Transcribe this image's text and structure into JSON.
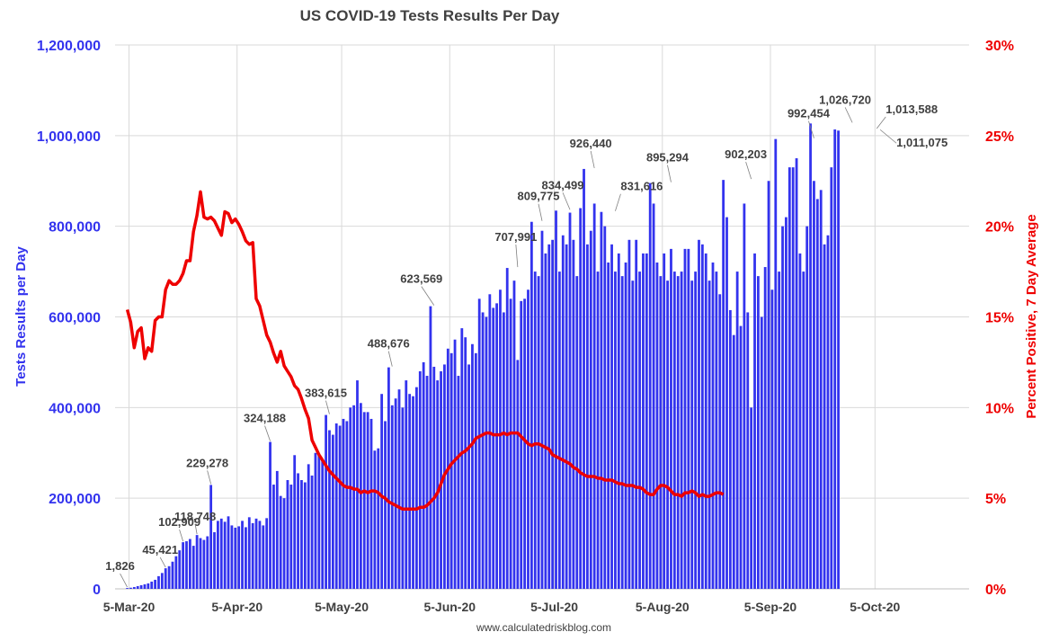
{
  "chart_data": {
    "type": "bar",
    "title": "US COVID-19 Tests Results Per Day",
    "ylabel": "Tests Results per Day",
    "y2label": "Percent Positive, 7 Day Average",
    "source": "www.calculatedriskblog.com",
    "ylim": [
      0,
      1200000
    ],
    "y2lim": [
      0,
      30
    ],
    "y_ticks": [
      "0",
      "200,000",
      "400,000",
      "600,000",
      "800,000",
      "1,000,000",
      "1,200,000"
    ],
    "y2_ticks": [
      "0%",
      "5%",
      "10%",
      "15%",
      "20%",
      "25%",
      "30%"
    ],
    "x_ticks": [
      "5-Mar-20",
      "5-Apr-20",
      "5-May-20",
      "5-Jun-20",
      "5-Jul-20",
      "5-Aug-20",
      "5-Sep-20",
      "5-Oct-20"
    ],
    "x_start": "2020-03-01",
    "x_end": "2020-11-01",
    "grid": true,
    "series": [
      {
        "name": "Tests Results per Day",
        "type": "bar",
        "color": "#3333ee",
        "start_date": "2020-03-04",
        "values": [
          1826,
          2500,
          4000,
          6000,
          8000,
          10000,
          12000,
          16000,
          20000,
          28000,
          35000,
          45421,
          50000,
          60000,
          72000,
          85000,
          102909,
          105000,
          110000,
          95000,
          118748,
          112000,
          108000,
          116000,
          229278,
          125000,
          150000,
          155000,
          148000,
          160000,
          140000,
          135000,
          138000,
          150000,
          136000,
          158000,
          145000,
          155000,
          150000,
          140000,
          156000,
          324188,
          230000,
          260000,
          205000,
          200000,
          240000,
          230000,
          295000,
          255000,
          240000,
          235000,
          275000,
          250000,
          300000,
          295000,
          285000,
          383615,
          350000,
          340000,
          365000,
          360000,
          375000,
          370000,
          400000,
          405000,
          460000,
          410000,
          390000,
          390000,
          375000,
          305000,
          310000,
          430000,
          370000,
          488676,
          405000,
          420000,
          440000,
          400000,
          460000,
          430000,
          425000,
          445000,
          480000,
          500000,
          470000,
          623569,
          490000,
          460000,
          480000,
          495000,
          530000,
          520000,
          550000,
          470000,
          575000,
          555000,
          495000,
          540000,
          520000,
          640000,
          610000,
          600000,
          650000,
          620000,
          630000,
          660000,
          610000,
          707991,
          640000,
          680000,
          505000,
          635000,
          640000,
          660000,
          809775,
          700000,
          690000,
          790000,
          740000,
          760000,
          770000,
          834499,
          700000,
          780000,
          760000,
          830000,
          770000,
          690000,
          840000,
          926440,
          760000,
          790000,
          850000,
          700000,
          831616,
          800000,
          720000,
          760000,
          700000,
          740000,
          690000,
          720000,
          770000,
          680000,
          770000,
          700000,
          740000,
          740000,
          895294,
          850000,
          720000,
          690000,
          740000,
          680000,
          750000,
          700000,
          690000,
          700000,
          750000,
          750000,
          680000,
          700000,
          770000,
          760000,
          740000,
          680000,
          720000,
          700000,
          650000,
          902203,
          820000,
          615000,
          560000,
          700000,
          580000,
          850000,
          610000,
          400000,
          740000,
          690000,
          600000,
          710000,
          900000,
          660000,
          992454,
          700000,
          800000,
          820000,
          930000,
          930000,
          950000,
          740000,
          700000,
          800000,
          1026720,
          900000,
          860000,
          880000,
          760000,
          780000,
          930000,
          1013588,
          1011075
        ]
      },
      {
        "name": "Percent Positive, 7 Day Average",
        "type": "line",
        "color": "#ee0000",
        "start_date": "2020-03-04",
        "values": [
          15.4,
          14.7,
          13.3,
          14.2,
          14.4,
          12.7,
          13.3,
          13.1,
          14.8,
          15.0,
          15.0,
          16.5,
          17.0,
          16.8,
          16.8,
          17.0,
          17.4,
          18.1,
          18.1,
          19.7,
          20.6,
          21.9,
          20.5,
          20.4,
          20.5,
          20.3,
          19.9,
          19.5,
          20.8,
          20.7,
          20.2,
          20.4,
          20.1,
          19.7,
          19.2,
          19.0,
          19.1,
          16.0,
          15.6,
          14.8,
          14.0,
          13.6,
          13.0,
          12.5,
          13.1,
          12.3,
          12.0,
          11.7,
          11.2,
          11.0,
          10.5,
          9.9,
          9.4,
          8.2,
          7.8,
          7.4,
          7.1,
          6.8,
          6.5,
          6.3,
          6.1,
          5.9,
          5.7,
          5.6,
          5.6,
          5.5,
          5.5,
          5.3,
          5.4,
          5.3,
          5.4,
          5.4,
          5.3,
          5.1,
          5.0,
          4.8,
          4.7,
          4.6,
          4.5,
          4.4,
          4.4,
          4.4,
          4.4,
          4.4,
          4.5,
          4.5,
          4.6,
          4.8,
          5.0,
          5.3,
          5.8,
          6.3,
          6.6,
          6.9,
          7.1,
          7.3,
          7.5,
          7.6,
          7.8,
          8.0,
          8.3,
          8.4,
          8.5,
          8.6,
          8.6,
          8.5,
          8.5,
          8.5,
          8.6,
          8.5,
          8.6,
          8.6,
          8.6,
          8.4,
          8.2,
          8.0,
          7.9,
          8.0,
          8.0,
          7.9,
          7.8,
          7.7,
          7.4,
          7.3,
          7.2,
          7.1,
          7.0,
          6.9,
          6.7,
          6.6,
          6.4,
          6.3,
          6.2,
          6.2,
          6.2,
          6.1,
          6.1,
          6.0,
          6.0,
          6.0,
          5.9,
          5.8,
          5.8,
          5.7,
          5.7,
          5.7,
          5.6,
          5.6,
          5.5,
          5.3,
          5.2,
          5.2,
          5.5,
          5.7,
          5.7,
          5.6,
          5.4,
          5.2,
          5.2,
          5.1,
          5.3,
          5.3,
          5.4,
          5.3,
          5.1,
          5.2,
          5.1,
          5.1,
          5.2,
          5.3,
          5.3,
          5.2
        ]
      }
    ],
    "annotations": [
      {
        "label": "1,826",
        "date": "2020-03-04",
        "value": 1826
      },
      {
        "label": "45,421",
        "date": "2020-03-15",
        "value": 45421
      },
      {
        "label": "102,909",
        "date": "2020-03-20",
        "value": 102909
      },
      {
        "label": "118,748",
        "date": "2020-03-24",
        "value": 118748
      },
      {
        "label": "229,278",
        "date": "2020-03-28",
        "value": 229278
      },
      {
        "label": "324,188",
        "date": "2020-04-14",
        "value": 324188
      },
      {
        "label": "383,615",
        "date": "2020-05-01",
        "value": 383615
      },
      {
        "label": "488,676",
        "date": "2020-05-19",
        "value": 488676
      },
      {
        "label": "623,569",
        "date": "2020-05-31",
        "value": 623569
      },
      {
        "label": "707,991",
        "date": "2020-06-24",
        "value": 707991
      },
      {
        "label": "809,775",
        "date": "2020-07-01",
        "value": 809775
      },
      {
        "label": "834,499",
        "date": "2020-07-09",
        "value": 834499
      },
      {
        "label": "926,440",
        "date": "2020-07-16",
        "value": 926440
      },
      {
        "label": "831,616",
        "date": "2020-07-22",
        "value": 831616
      },
      {
        "label": "895,294",
        "date": "2020-08-07",
        "value": 895294
      },
      {
        "label": "902,203",
        "date": "2020-08-30",
        "value": 902203
      },
      {
        "label": "992,454",
        "date": "2020-09-17",
        "value": 992454
      },
      {
        "label": "1,026,720",
        "date": "2020-09-28",
        "value": 1026720
      },
      {
        "label": "1,013,588",
        "date": "2020-10-05",
        "value": 1013588
      },
      {
        "label": "1,011,075",
        "date": "2020-10-06",
        "value": 1011075
      }
    ]
  }
}
